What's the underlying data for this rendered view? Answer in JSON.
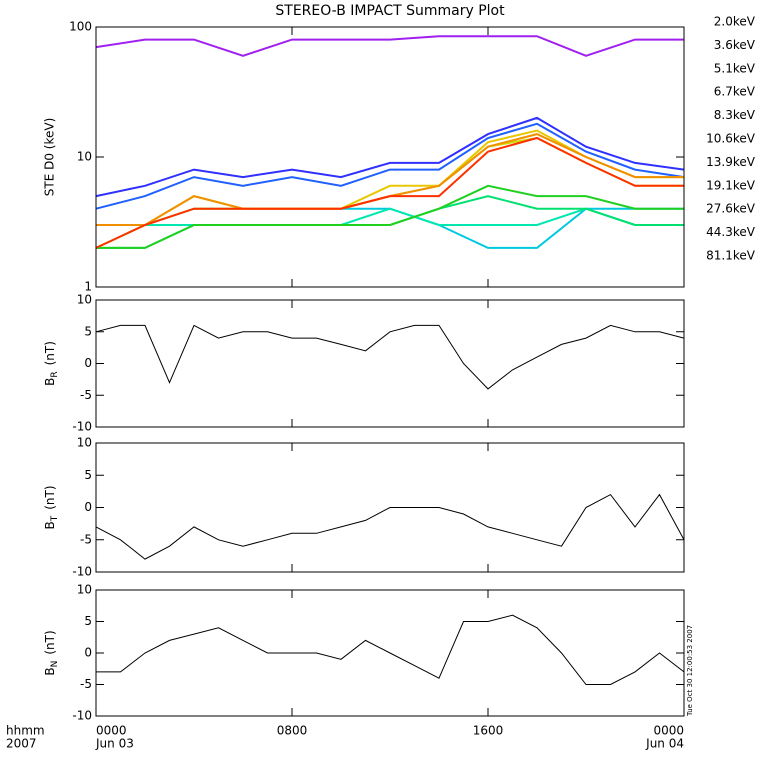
{
  "chart_data": [
    {
      "type": "line",
      "title": "STEREO-B IMPACT Summary Plot",
      "ylabel": "STE D0 (keV)",
      "log": true,
      "ylim": [
        1,
        100
      ],
      "yticks": [
        1,
        10,
        100
      ],
      "xlim": [
        0,
        24
      ],
      "xticks": [
        0,
        8,
        16,
        24
      ],
      "x": [
        0,
        2,
        4,
        6,
        8,
        10,
        12,
        14,
        16,
        18,
        20,
        22,
        24
      ],
      "series": [
        {
          "name": "2.0keV",
          "color": "#a020f0",
          "values": [
            70,
            80,
            80,
            60,
            80,
            80,
            80,
            85,
            85,
            85,
            60,
            80,
            80
          ]
        },
        {
          "name": "3.6keV",
          "color": "#3030ff",
          "values": [
            5,
            6,
            8,
            7,
            8,
            7,
            9,
            9,
            15,
            20,
            12,
            9,
            8
          ]
        },
        {
          "name": "5.1keV",
          "color": "#2060ff",
          "values": [
            4,
            5,
            7,
            6,
            7,
            6,
            8,
            8,
            14,
            18,
            11,
            8,
            7
          ]
        },
        {
          "name": "6.7keV",
          "color": "#00c8e0",
          "values": [
            3,
            3,
            4,
            4,
            4,
            4,
            4,
            3,
            2,
            2,
            4,
            4,
            4
          ]
        },
        {
          "name": "8.3keV",
          "color": "#00e8b0",
          "values": [
            2,
            3,
            3,
            3,
            3,
            3,
            4,
            3,
            3,
            3,
            4,
            3,
            3
          ]
        },
        {
          "name": "10.6keV",
          "color": "#00e070",
          "values": [
            2,
            2,
            3,
            3,
            3,
            3,
            3,
            4,
            5,
            4,
            4,
            3,
            3
          ]
        },
        {
          "name": "13.9keV",
          "color": "#20d020",
          "values": [
            2,
            2,
            3,
            3,
            3,
            3,
            3,
            4,
            6,
            5,
            5,
            4,
            4
          ]
        },
        {
          "name": "19.1keV",
          "color": "#c8e000",
          "values": [
            2,
            3,
            4,
            4,
            4,
            4,
            5,
            6,
            12,
            14,
            9,
            6,
            6
          ]
        },
        {
          "name": "27.6keV",
          "color": "#e8c800",
          "values": [
            3,
            3,
            5,
            4,
            4,
            4,
            6,
            6,
            13,
            16,
            10,
            7,
            7
          ]
        },
        {
          "name": "44.3keV",
          "color": "#f09000",
          "values": [
            3,
            3,
            5,
            4,
            4,
            4,
            5,
            6,
            12,
            15,
            10,
            7,
            7
          ]
        },
        {
          "name": "81.1keV",
          "color": "#ff3000",
          "values": [
            2,
            3,
            4,
            4,
            4,
            4,
            5,
            5,
            11,
            14,
            9,
            6,
            6
          ]
        }
      ]
    },
    {
      "type": "line",
      "ylabel": {
        "main": "B",
        "sub": "R",
        "unit": "(nT)"
      },
      "ylim": [
        -10,
        10
      ],
      "yticks": [
        -10,
        -5,
        0,
        5,
        10
      ],
      "xlim": [
        0,
        24
      ],
      "xticks": [
        0,
        8,
        16,
        24
      ],
      "x": [
        0,
        1,
        2,
        3,
        4,
        5,
        6,
        7,
        8,
        9,
        10,
        11,
        12,
        13,
        14,
        15,
        16,
        17,
        18,
        19,
        20,
        21,
        22,
        23,
        24
      ],
      "series": [
        {
          "name": "BR",
          "color": "#000000",
          "values": [
            5,
            6,
            6,
            -3,
            6,
            4,
            5,
            5,
            4,
            4,
            3,
            2,
            5,
            6,
            6,
            0,
            -4,
            -1,
            1,
            3,
            4,
            6,
            5,
            5,
            4
          ]
        }
      ]
    },
    {
      "type": "line",
      "ylabel": {
        "main": "B",
        "sub": "T",
        "unit": "(nT)"
      },
      "ylim": [
        -10,
        10
      ],
      "yticks": [
        -10,
        -5,
        0,
        5,
        10
      ],
      "xlim": [
        0,
        24
      ],
      "xticks": [
        0,
        8,
        16,
        24
      ],
      "x": [
        0,
        1,
        2,
        3,
        4,
        5,
        6,
        7,
        8,
        9,
        10,
        11,
        12,
        13,
        14,
        15,
        16,
        17,
        18,
        19,
        20,
        21,
        22,
        23,
        24
      ],
      "series": [
        {
          "name": "BT",
          "color": "#000000",
          "values": [
            -3,
            -5,
            -8,
            -6,
            -3,
            -5,
            -6,
            -5,
            -4,
            -4,
            -3,
            -2,
            0,
            0,
            0,
            -1,
            -3,
            -4,
            -5,
            -6,
            0,
            2,
            -3,
            2,
            -5
          ]
        }
      ]
    },
    {
      "type": "line",
      "ylabel": {
        "main": "B",
        "sub": "N",
        "unit": "(nT)"
      },
      "ylim": [
        -10,
        10
      ],
      "yticks": [
        -10,
        -5,
        0,
        5,
        10
      ],
      "xlim": [
        0,
        24
      ],
      "xticks": [
        {
          "value": 0,
          "label": "0000"
        },
        {
          "value": 8,
          "label": "0800"
        },
        {
          "value": 16,
          "label": "1600"
        },
        {
          "value": 24,
          "label": "0000"
        }
      ],
      "date_labels": [
        "Jun 03",
        "Jun 04"
      ],
      "axis_caption": [
        "hhmm",
        "2007"
      ],
      "timestamp": "Tue Oct 30 12:00:53 2007",
      "x": [
        0,
        1,
        2,
        3,
        4,
        5,
        6,
        7,
        8,
        9,
        10,
        11,
        12,
        13,
        14,
        15,
        16,
        17,
        18,
        19,
        20,
        21,
        22,
        23,
        24
      ],
      "series": [
        {
          "name": "BN",
          "color": "#000000",
          "values": [
            -3,
            -3,
            0,
            2,
            3,
            4,
            2,
            0,
            0,
            0,
            -1,
            2,
            0,
            -2,
            -4,
            5,
            5,
            6,
            4,
            0,
            -5,
            -5,
            -3,
            0,
            -3
          ]
        }
      ]
    }
  ]
}
